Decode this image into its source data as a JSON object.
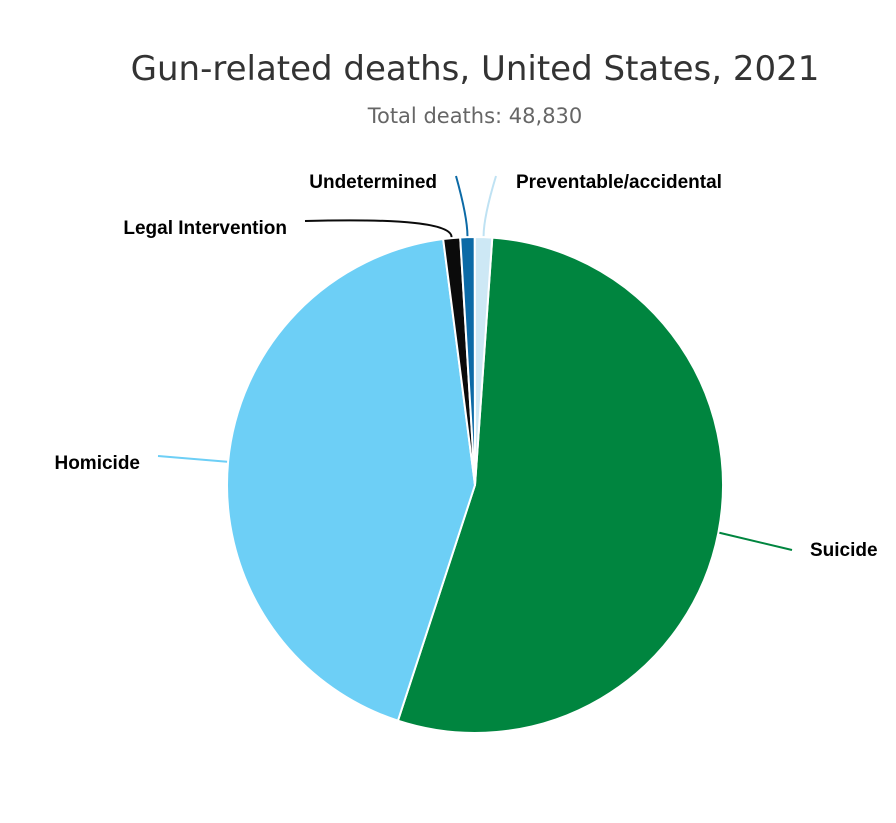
{
  "chart_data": {
    "type": "pie",
    "title": "Gun-related deaths, United States, 2021",
    "subtitle": "Total deaths: 48,830",
    "slices": [
      {
        "label": "Suicide",
        "value": 26328,
        "color": "#00853f"
      },
      {
        "label": "Homicide",
        "value": 20958,
        "color": "#6dcff6"
      },
      {
        "label": "Legal Intervention",
        "value": 537,
        "color": "#0b0b0b"
      },
      {
        "label": "Undetermined",
        "value": 458,
        "color": "#0c6aa6"
      },
      {
        "label": "Preventable/accidental",
        "value": 549,
        "color": "#cde8f5"
      }
    ]
  }
}
